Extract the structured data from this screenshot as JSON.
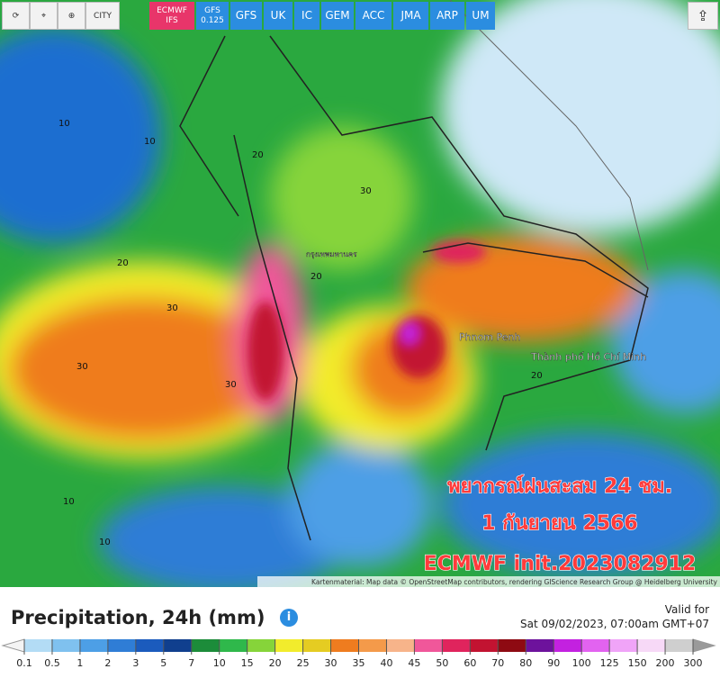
{
  "toolbar": {
    "tools": [
      "⟳",
      "⌖",
      "⊕",
      "CITY"
    ],
    "models": [
      "ECMWF IFS",
      "GFS 0.125",
      "GFS",
      "UK",
      "IC",
      "GEM",
      "ACC",
      "JMA",
      "ARP",
      "UM"
    ],
    "active_model": "ECMWF IFS",
    "share": "⇪"
  },
  "map": {
    "places": [
      "Phnom Penh",
      "Thành phố Hồ Chí Minh",
      "กรุงเทพมหานคร"
    ],
    "contour_labels": [
      "10",
      "10",
      "20",
      "20",
      "30",
      "30",
      "30",
      "20",
      "10",
      "30",
      "20",
      "10"
    ],
    "overlay": [
      "พยากรณ์ฝนสะสม 24 ชม.",
      "1 กันยายน 2566",
      "ECMWF init.2023082912"
    ],
    "attribution": "Kartenmaterial: Map data © OpenStreetMap contributors, rendering GIScience Research Group @ Heidelberg University"
  },
  "legend": {
    "title": "Precipitation, 24h (mm)",
    "info": "i",
    "valid_label": "Valid for",
    "valid_time": "Sat 09/02/2023, 07:00am GMT+07",
    "ticks": [
      "0.1",
      "0.5",
      "1",
      "2",
      "3",
      "5",
      "7",
      "10",
      "15",
      "20",
      "25",
      "30",
      "35",
      "40",
      "45",
      "50",
      "60",
      "70",
      "80",
      "90",
      "100",
      "125",
      "150",
      "200",
      "300"
    ],
    "colors": [
      "#f4f4f4",
      "#b3dcf5",
      "#7fc1ef",
      "#4d9fe6",
      "#2f7dd6",
      "#1b5bbd",
      "#103f8e",
      "#1c8c3a",
      "#2fb84b",
      "#86d43a",
      "#f2ec2c",
      "#e5cc22",
      "#ef7c1f",
      "#f49a4a",
      "#f7b48a",
      "#f0579a",
      "#e0245d",
      "#c21331",
      "#8e0a12",
      "#6d129c",
      "#c321e0",
      "#e263f0",
      "#f0a4f8",
      "#f7d9f7",
      "#cfcfcf",
      "#9a9a9a"
    ]
  }
}
